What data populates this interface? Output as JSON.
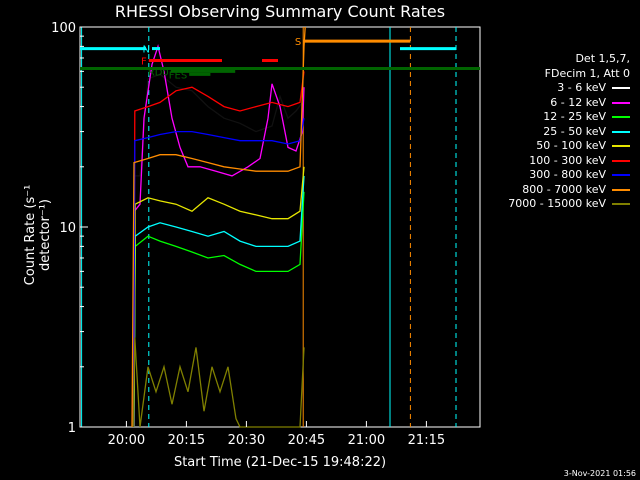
{
  "figure": {
    "title": "RHESSI Observing Summary Count Rates",
    "footer_date": "3-Nov-2021 01:56",
    "legend_header": [
      "Det 1,5,7,",
      "FDecim 1, Att 0"
    ]
  },
  "chart_data": {
    "type": "line",
    "title": "RHESSI Observing Summary Count Rates",
    "xlabel": "Start Time (21-Dec-15 19:48:22)",
    "ylabel": "Count Rate (s⁻¹ detector⁻¹)",
    "yscale": "log",
    "ylim": [
      1,
      100
    ],
    "xlim": [
      0,
      100
    ],
    "x_units": "minutes after 19:48:22",
    "x_ticks": [
      {
        "label": "20:00",
        "x": 11.6
      },
      {
        "label": "20:15",
        "x": 26.6
      },
      {
        "label": "20:30",
        "x": 41.6
      },
      {
        "label": "20:45",
        "x": 56.6
      },
      {
        "label": "21:00",
        "x": 71.6
      },
      {
        "label": "21:15",
        "x": 86.6
      }
    ],
    "y_ticks": [
      {
        "label": "100",
        "y": 100
      },
      {
        "label": "10",
        "y": 10
      },
      {
        "label": "1",
        "y": 1
      }
    ],
    "legend_position": "right",
    "series": [
      {
        "name": "3 - 6 keV",
        "color": "#000000",
        "points": [
          [
            13.1,
            1
          ],
          [
            13.5,
            18
          ],
          [
            15,
            18
          ],
          [
            17,
            55
          ],
          [
            20,
            58
          ],
          [
            24,
            50
          ],
          [
            28,
            48
          ],
          [
            32,
            40
          ],
          [
            36,
            35
          ],
          [
            40,
            33
          ],
          [
            44,
            30
          ],
          [
            48,
            32
          ],
          [
            50,
            45
          ],
          [
            52,
            35
          ],
          [
            54,
            38
          ],
          [
            55.6,
            42
          ],
          [
            56,
            60
          ]
        ]
      },
      {
        "name": "6 - 12 keV",
        "color": "#ff00ff",
        "points": [
          [
            13.3,
            1
          ],
          [
            13.6,
            12
          ],
          [
            15,
            13
          ],
          [
            16,
            35
          ],
          [
            18,
            65
          ],
          [
            19.5,
            80
          ],
          [
            21,
            60
          ],
          [
            23,
            35
          ],
          [
            25,
            25
          ],
          [
            27,
            20
          ],
          [
            30,
            20
          ],
          [
            34,
            19
          ],
          [
            38,
            18
          ],
          [
            42,
            20
          ],
          [
            45,
            22
          ],
          [
            47,
            35
          ],
          [
            48,
            52
          ],
          [
            50,
            40
          ],
          [
            52,
            25
          ],
          [
            54,
            24
          ],
          [
            55.6,
            30
          ],
          [
            56,
            50
          ]
        ]
      },
      {
        "name": "12 - 25 keV",
        "color": "#00ff00",
        "points": [
          [
            13.5,
            1
          ],
          [
            13.8,
            8
          ],
          [
            17,
            9
          ],
          [
            20,
            8.5
          ],
          [
            24,
            8
          ],
          [
            28,
            7.5
          ],
          [
            32,
            7
          ],
          [
            36,
            7.2
          ],
          [
            40,
            6.5
          ],
          [
            44,
            6
          ],
          [
            48,
            6
          ],
          [
            52,
            6
          ],
          [
            55,
            6.5
          ],
          [
            56,
            15
          ]
        ]
      },
      {
        "name": "25 - 50 keV",
        "color": "#00ffff",
        "points": [
          [
            13.5,
            1
          ],
          [
            13.8,
            9
          ],
          [
            17,
            10
          ],
          [
            20,
            10.5
          ],
          [
            24,
            10
          ],
          [
            28,
            9.5
          ],
          [
            32,
            9
          ],
          [
            36,
            9.5
          ],
          [
            40,
            8.5
          ],
          [
            44,
            8
          ],
          [
            48,
            8
          ],
          [
            52,
            8
          ],
          [
            55,
            8.5
          ],
          [
            56,
            18
          ]
        ]
      },
      {
        "name": "50 - 100 keV",
        "color": "#e6e600",
        "points": [
          [
            13.5,
            1
          ],
          [
            13.8,
            13
          ],
          [
            17,
            14
          ],
          [
            20,
            13.5
          ],
          [
            24,
            13
          ],
          [
            28,
            12
          ],
          [
            32,
            14
          ],
          [
            36,
            13
          ],
          [
            40,
            12
          ],
          [
            44,
            11.5
          ],
          [
            48,
            11
          ],
          [
            52,
            11
          ],
          [
            55,
            12
          ],
          [
            56,
            20
          ]
        ]
      },
      {
        "name": "100 - 300 keV",
        "color": "#ff0000",
        "points": [
          [
            13.4,
            1
          ],
          [
            13.7,
            38
          ],
          [
            17,
            40
          ],
          [
            20,
            42
          ],
          [
            24,
            48
          ],
          [
            28,
            50
          ],
          [
            32,
            45
          ],
          [
            36,
            40
          ],
          [
            40,
            38
          ],
          [
            44,
            40
          ],
          [
            48,
            42
          ],
          [
            52,
            40
          ],
          [
            55,
            42
          ],
          [
            56,
            60
          ]
        ]
      },
      {
        "name": "300 - 800 keV",
        "color": "#0000ff",
        "points": [
          [
            13.4,
            1
          ],
          [
            13.7,
            27
          ],
          [
            17,
            28
          ],
          [
            20,
            29
          ],
          [
            24,
            30
          ],
          [
            28,
            30
          ],
          [
            32,
            29
          ],
          [
            36,
            28
          ],
          [
            40,
            27
          ],
          [
            44,
            27
          ],
          [
            48,
            27
          ],
          [
            52,
            26
          ],
          [
            55,
            27
          ],
          [
            56,
            35
          ]
        ]
      },
      {
        "name": "800 - 7000 keV",
        "color": "#ff8c00",
        "points": [
          [
            13,
            1
          ],
          [
            13.5,
            21
          ],
          [
            17,
            22
          ],
          [
            20,
            23
          ],
          [
            24,
            23
          ],
          [
            28,
            22
          ],
          [
            32,
            21
          ],
          [
            36,
            20
          ],
          [
            40,
            19.5
          ],
          [
            44,
            19
          ],
          [
            48,
            19
          ],
          [
            52,
            19
          ],
          [
            55,
            20
          ],
          [
            56,
            80
          ],
          [
            56.3,
            100
          ]
        ]
      },
      {
        "name": "7000 - 15000 keV",
        "color": "#808000",
        "points": [
          [
            13.3,
            1
          ],
          [
            13.7,
            2.8
          ],
          [
            15,
            1
          ],
          [
            17,
            2
          ],
          [
            19,
            1.5
          ],
          [
            21,
            2
          ],
          [
            23,
            1.3
          ],
          [
            25,
            2
          ],
          [
            27,
            1.5
          ],
          [
            29,
            2.5
          ],
          [
            31,
            1.2
          ],
          [
            33,
            2
          ],
          [
            35,
            1.5
          ],
          [
            37,
            2
          ],
          [
            39,
            1.1
          ],
          [
            40,
            1
          ],
          [
            55,
            1
          ],
          [
            56,
            2.5
          ]
        ]
      }
    ],
    "vertical_markers": [
      {
        "x": 0.4,
        "color": "#00ffff",
        "style": "solid"
      },
      {
        "x": 17.2,
        "color": "#00ffff",
        "style": "dashed"
      },
      {
        "x": 77.5,
        "color": "#00ffff",
        "style": "solid"
      },
      {
        "x": 82.6,
        "color": "#ff8c00",
        "style": "dashed"
      },
      {
        "x": 94.0,
        "color": "#00ffff",
        "style": "dashed"
      },
      {
        "x": 55.8,
        "color": "#ff8c00",
        "style": "solid"
      }
    ],
    "flag_bars": [
      {
        "label": "",
        "color": "#00ffff",
        "x1": 0,
        "x2": 16.5,
        "y": 78
      },
      {
        "label": "",
        "color": "#00ffff",
        "x1": 80,
        "x2": 94,
        "y": 78
      },
      {
        "label": "N",
        "color": "#00ffff",
        "x1": 18,
        "x2": 20,
        "y": 78
      },
      {
        "label": "",
        "color": "#006400",
        "x1": 0,
        "x2": 100,
        "y": 62
      },
      {
        "label": "F",
        "color": "#ff0000",
        "x1": 17.2,
        "x2": 35.5,
        "y": 68
      },
      {
        "label": "",
        "color": "#ff0000",
        "x1": 45.5,
        "x2": 49.5,
        "y": 68
      },
      {
        "label": "RD0",
        "color": "#006400",
        "x1": 22.7,
        "x2": 38.8,
        "y": 60
      },
      {
        "label": "FES",
        "color": "#006400",
        "x1": 27.3,
        "x2": 32.6,
        "y": 58
      },
      {
        "label": "S",
        "color": "#ff8c00",
        "x1": 55.8,
        "x2": 82.6,
        "y": 85
      }
    ]
  }
}
